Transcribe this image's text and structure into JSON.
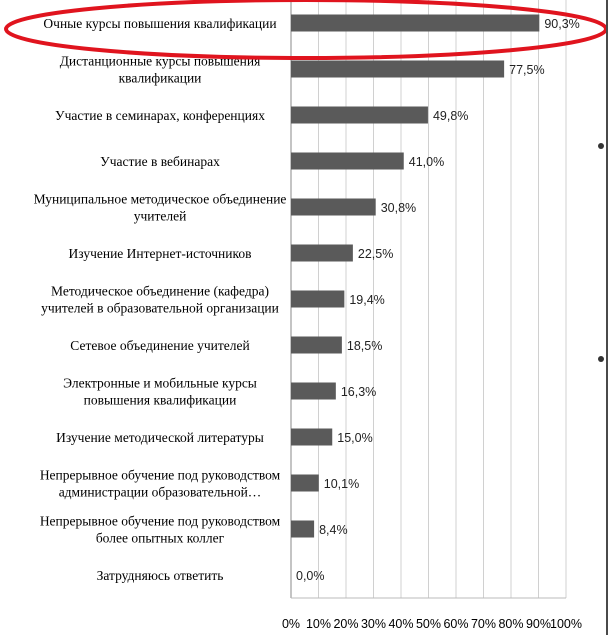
{
  "chart_data": {
    "type": "bar",
    "orientation": "horizontal",
    "categories": [
      [
        "Очные курсы повышения квалификации"
      ],
      [
        "Дистанционные курсы повышения",
        "квалификации"
      ],
      [
        "Участие в семинарах, конференциях"
      ],
      [
        "Участие в вебинарах"
      ],
      [
        "Муниципальное методическое объединение",
        "учителей"
      ],
      [
        "Изучение Интернет-источников"
      ],
      [
        "Методическое объединение (кафедра)",
        "учителей в образовательной организации"
      ],
      [
        "Сетевое объединение учителей"
      ],
      [
        "Электронные и мобильные курсы",
        "повышения квалификации"
      ],
      [
        "Изучение методической литературы"
      ],
      [
        "Непрерывное обучение под руководством",
        "администрации образовательной…"
      ],
      [
        "Непрерывное обучение под руководством",
        "более опытных коллег"
      ],
      [
        "Затрудняюсь ответить"
      ]
    ],
    "values": [
      90.3,
      77.5,
      49.8,
      41.0,
      30.8,
      22.5,
      19.4,
      18.5,
      16.3,
      15.0,
      10.1,
      8.4,
      0.0
    ],
    "value_labels": [
      "90,3%",
      "77,5%",
      "49,8%",
      "41,0%",
      "30,8%",
      "22,5%",
      "19,4%",
      "18,5%",
      "16,3%",
      "15,0%",
      "10,1%",
      "8,4%",
      "0,0%"
    ],
    "xlim": [
      0,
      100
    ],
    "x_ticks": [
      "0%",
      "10%",
      "20%",
      "30%",
      "40%",
      "50%",
      "60%",
      "70%",
      "80%",
      "90%",
      "100%"
    ],
    "grid": true,
    "highlighted_category_index": 0,
    "colors": {
      "bar": "#5a5a5a",
      "grid": "#d0d0d0",
      "highlight": "#e0141e"
    }
  }
}
